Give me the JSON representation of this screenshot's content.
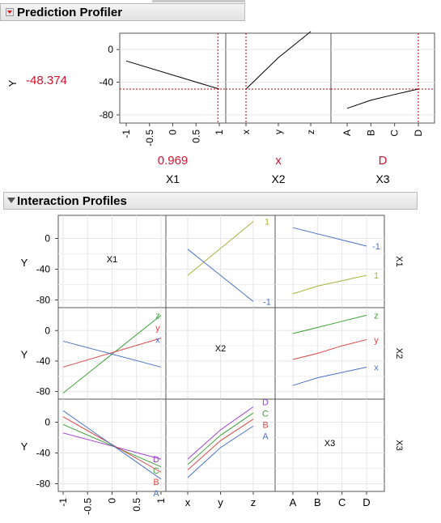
{
  "prediction_profiler": {
    "title": "Prediction Profiler",
    "response": {
      "name": "Y",
      "value": "-48.374"
    },
    "y_ticks": [
      "0",
      "-40",
      "-80"
    ],
    "factors": [
      {
        "name": "X1",
        "current": "0.969",
        "ticks": [
          "-1",
          "-0.5",
          "0",
          "0.5",
          "1"
        ]
      },
      {
        "name": "X2",
        "current": "x",
        "ticks": [
          "x",
          "y",
          "z"
        ]
      },
      {
        "name": "X3",
        "current": "D",
        "ticks": [
          "A",
          "B",
          "C",
          "D"
        ]
      }
    ]
  },
  "interaction_profiles": {
    "title": "Interaction Profiles",
    "response": "Y",
    "y_ticks": [
      "0",
      "-40",
      "-80"
    ],
    "diag_labels": [
      "X1",
      "X2",
      "X3"
    ],
    "row_labels": [
      "X1",
      "X2",
      "X3"
    ],
    "x1_ticks": [
      "-1",
      "-0.5",
      "0",
      "0.5",
      "1"
    ],
    "x2_ticks": [
      "x",
      "y",
      "z"
    ],
    "x3_ticks": [
      "A",
      "B",
      "C",
      "D"
    ]
  },
  "chart_data": [
    {
      "type": "line",
      "panel": "profiler-X1",
      "x": [
        -1,
        1
      ],
      "y": [
        -14,
        -48.374
      ],
      "crosshair": {
        "x": 0.969,
        "y": -48.374
      },
      "ylim": [
        -90,
        20
      ]
    },
    {
      "type": "line",
      "panel": "profiler-X2",
      "x": [
        "x",
        "y",
        "z"
      ],
      "y": [
        -48.374,
        -10,
        22
      ],
      "crosshair": {
        "x": "x",
        "y": -48.374
      },
      "ylim": [
        -90,
        20
      ]
    },
    {
      "type": "line",
      "panel": "profiler-X3",
      "x": [
        "A",
        "B",
        "C",
        "D"
      ],
      "y": [
        -72,
        -62,
        -55,
        -48.374
      ],
      "crosshair": {
        "x": "D",
        "y": -48.374
      },
      "ylim": [
        -90,
        20
      ]
    },
    {
      "type": "line",
      "panel": "interaction-X1-by-X2",
      "x": [
        "x",
        "z"
      ],
      "series": [
        {
          "name": "1",
          "values": [
            -48,
            22
          ]
        },
        {
          "name": "-1",
          "values": [
            -14,
            -82
          ]
        }
      ],
      "ylim": [
        -90,
        30
      ]
    },
    {
      "type": "line",
      "panel": "interaction-X1-by-X3",
      "x": [
        "A",
        "B",
        "C",
        "D"
      ],
      "series": [
        {
          "name": "-1",
          "values": [
            14,
            6,
            -2,
            -10
          ]
        },
        {
          "name": "1",
          "values": [
            -72,
            -62,
            -55,
            -48
          ]
        }
      ],
      "ylim": [
        -90,
        30
      ]
    },
    {
      "type": "line",
      "panel": "interaction-X2-by-X1",
      "x": [
        -1,
        1
      ],
      "series": [
        {
          "name": "z",
          "values": [
            -82,
            20
          ]
        },
        {
          "name": "y",
          "values": [
            -48,
            -10
          ]
        },
        {
          "name": "x",
          "values": [
            -14,
            -48
          ]
        }
      ],
      "ylim": [
        -90,
        30
      ]
    },
    {
      "type": "line",
      "panel": "interaction-X2-by-X3",
      "x": [
        "A",
        "B",
        "C",
        "D"
      ],
      "series": [
        {
          "name": "z",
          "values": [
            -4,
            4,
            12,
            20
          ]
        },
        {
          "name": "y",
          "values": [
            -38,
            -30,
            -20,
            -12
          ]
        },
        {
          "name": "x",
          "values": [
            -72,
            -62,
            -55,
            -48
          ]
        }
      ],
      "ylim": [
        -90,
        30
      ]
    },
    {
      "type": "line",
      "panel": "interaction-X3-by-X1",
      "x": [
        -1,
        1
      ],
      "series": [
        {
          "name": "D",
          "values": [
            -14,
            -48
          ]
        },
        {
          "name": "C",
          "values": [
            -3,
            -58
          ]
        },
        {
          "name": "B",
          "values": [
            7,
            -65
          ]
        },
        {
          "name": "A",
          "values": [
            15,
            -74
          ]
        }
      ],
      "ylim": [
        -90,
        30
      ]
    },
    {
      "type": "line",
      "panel": "interaction-X3-by-X2",
      "x": [
        "x",
        "y",
        "z"
      ],
      "series": [
        {
          "name": "D",
          "values": [
            -48,
            -10,
            20
          ]
        },
        {
          "name": "C",
          "values": [
            -55,
            -17,
            12
          ]
        },
        {
          "name": "B",
          "values": [
            -62,
            -24,
            4
          ]
        },
        {
          "name": "A",
          "values": [
            -72,
            -33,
            -5
          ]
        }
      ],
      "ylim": [
        -90,
        30
      ]
    }
  ]
}
